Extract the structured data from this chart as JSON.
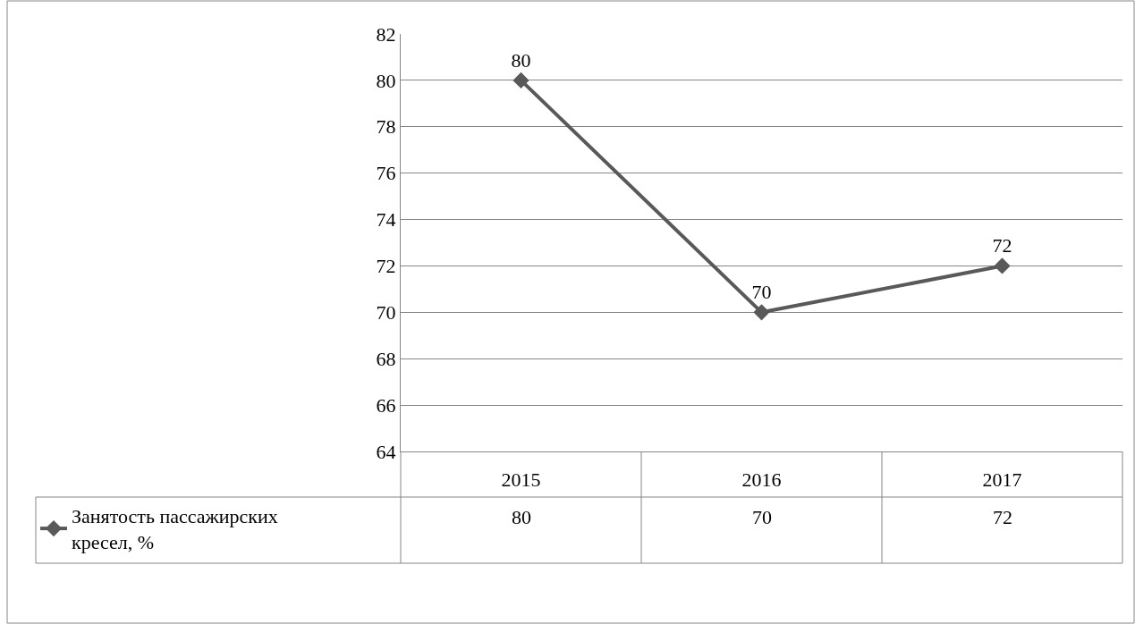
{
  "chart_data": {
    "type": "line",
    "categories": [
      "2015",
      "2016",
      "2017"
    ],
    "series": [
      {
        "name": "Занятость пассажирских кресел, %",
        "color": "#595959",
        "values": [
          80,
          70,
          72
        ]
      }
    ],
    "annotations": [
      "80",
      "70",
      "72"
    ],
    "ylim": [
      64,
      82
    ],
    "yticks": [
      64,
      66,
      68,
      70,
      72,
      74,
      76,
      78,
      80,
      82
    ],
    "grid": "y",
    "data_labels": true,
    "marker": "diamond",
    "line_style": "solid",
    "legend": "bottom left"
  }
}
